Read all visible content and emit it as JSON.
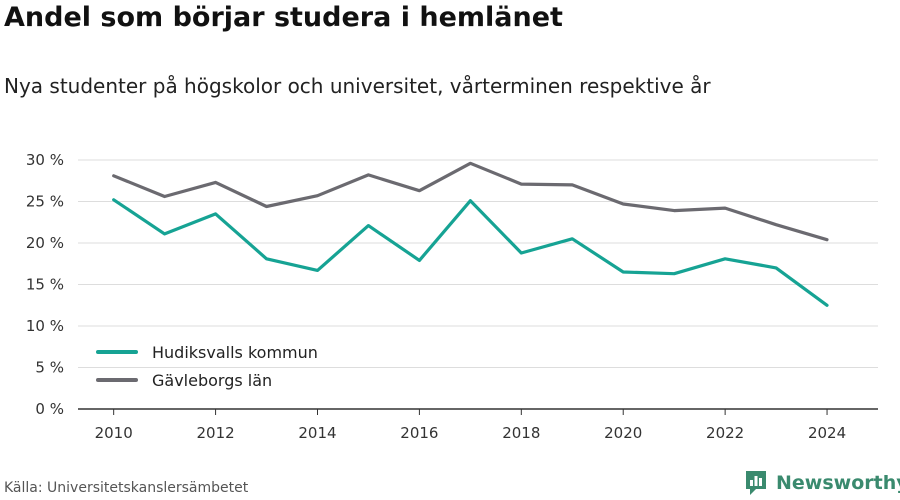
{
  "header": {
    "title": "Andel som börjar studera i hemlänet",
    "subtitle": "Nya studenter på högskolor och universitet, vårterminen respektive år"
  },
  "footer": {
    "source": "Källa: Universitetskanslersämbetet",
    "brand": "Newsworthy"
  },
  "colors": {
    "brand": "#3a8a6e",
    "grid": "#dddddd",
    "axis": "#333333"
  },
  "chart_data": {
    "type": "line",
    "x": [
      2010,
      2011,
      2012,
      2013,
      2014,
      2015,
      2016,
      2017,
      2018,
      2019,
      2020,
      2021,
      2022,
      2023,
      2024
    ],
    "xticks": [
      2010,
      2012,
      2014,
      2016,
      2018,
      2020,
      2022,
      2024
    ],
    "yticks": [
      0,
      5,
      10,
      15,
      20,
      25,
      30
    ],
    "ytick_labels": [
      "0 %",
      "5 %",
      "10 %",
      "15 %",
      "20 %",
      "25 %",
      "30 %"
    ],
    "ylim": [
      0,
      30
    ],
    "grid": true,
    "legend_position": "bottom-left",
    "series": [
      {
        "name": "Hudiksvalls kommun",
        "color": "#16a394",
        "values": [
          25.2,
          21.1,
          23.5,
          18.1,
          16.7,
          22.1,
          17.9,
          25.1,
          18.8,
          20.5,
          16.5,
          16.3,
          18.1,
          17.0,
          12.5
        ]
      },
      {
        "name": "Gävleborgs län",
        "color": "#6b6a70",
        "values": [
          28.1,
          25.6,
          27.3,
          24.4,
          25.7,
          28.2,
          26.3,
          29.6,
          27.1,
          27.0,
          24.7,
          23.9,
          24.2,
          22.2,
          20.4
        ]
      }
    ]
  }
}
